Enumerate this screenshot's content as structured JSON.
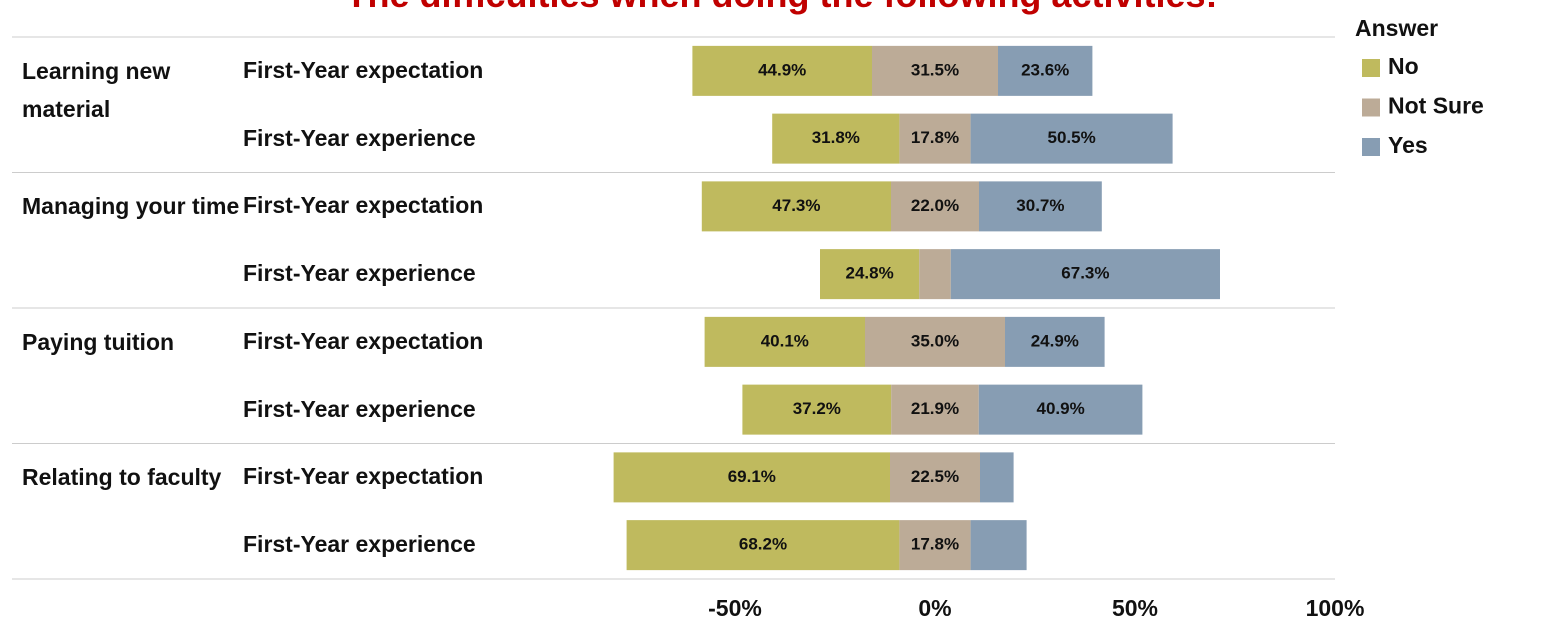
{
  "chart_data": {
    "type": "diverging_bar",
    "title": "The difficulties when doing the following activities:",
    "groups": [
      "Learning new material",
      "Managing your time",
      "Paying tuition",
      "Relating to faculty"
    ],
    "categories": [
      "First-Year expectation",
      "First-Year experience",
      "First-Year expectation",
      "First-Year experience",
      "First-Year expectation",
      "First-Year experience",
      "First-Year expectation",
      "First-Year experience"
    ],
    "legend_title": "Answer",
    "legend": "right",
    "series": [
      {
        "name": "No",
        "color": "#bfba5e",
        "values": [
          44.9,
          31.8,
          47.3,
          24.8,
          40.1,
          37.2,
          69.1,
          68.2
        ],
        "value_labels": [
          "44.9%",
          "31.8%",
          "47.3%",
          "24.8%",
          "40.1%",
          "37.2%",
          "69.1%",
          "68.2%"
        ]
      },
      {
        "name": "Not Sure",
        "color": "#bcab97",
        "values": [
          31.5,
          17.8,
          22.0,
          7.9,
          35.0,
          21.9,
          22.5,
          17.8
        ],
        "value_labels": [
          "31.5%",
          "17.8%",
          "22.0%",
          null,
          "35.0%",
          "21.9%",
          "22.5%",
          "17.8%"
        ]
      },
      {
        "name": "Yes",
        "color": "#879db3",
        "values": [
          23.6,
          50.5,
          30.7,
          67.3,
          24.9,
          40.9,
          8.4,
          14.0
        ],
        "value_labels": [
          "23.6%",
          "50.5%",
          "30.7%",
          "67.3%",
          "24.9%",
          "40.9%",
          null,
          null
        ]
      }
    ],
    "xlim": [
      -100,
      100
    ],
    "xticks": [
      {
        "value": -50,
        "label": "-50%"
      },
      {
        "value": 0,
        "label": "0%"
      },
      {
        "value": 50,
        "label": "50%"
      },
      {
        "value": 100,
        "label": "100%"
      }
    ]
  }
}
